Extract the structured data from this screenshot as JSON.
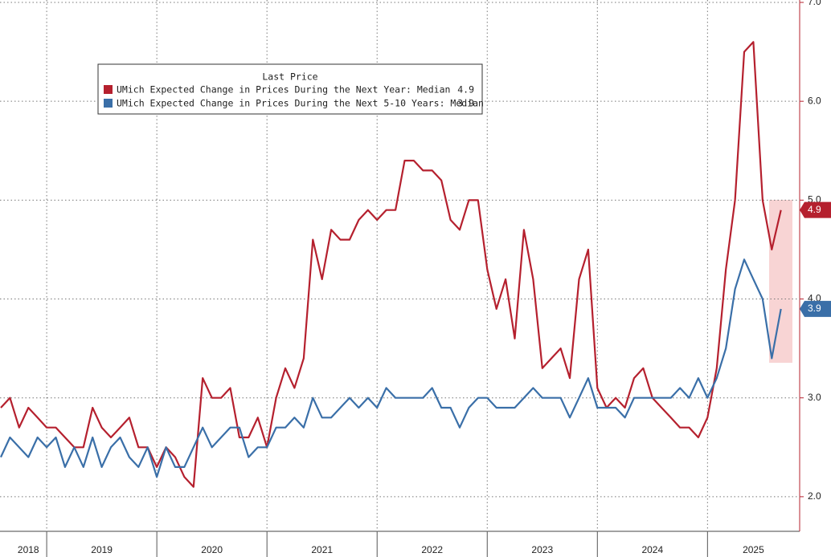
{
  "chart_data": {
    "type": "line",
    "categories": [
      null,
      null,
      null,
      "2018",
      null,
      null,
      null,
      null,
      null,
      null,
      null,
      "2019",
      null,
      null,
      null,
      null,
      null,
      null,
      null,
      null,
      null,
      null,
      null,
      "2020",
      null,
      null,
      null,
      null,
      null,
      null,
      null,
      null,
      null,
      null,
      null,
      "2021",
      null,
      null,
      null,
      null,
      null,
      null,
      null,
      null,
      null,
      null,
      null,
      "2022",
      null,
      null,
      null,
      null,
      null,
      null,
      null,
      null,
      null,
      null,
      null,
      "2023",
      null,
      null,
      null,
      null,
      null,
      null,
      null,
      null,
      null,
      null,
      null,
      "2024",
      null,
      null,
      null,
      null,
      null,
      null,
      null,
      null,
      null,
      null,
      "2025",
      null,
      null,
      null
    ],
    "legend_title": "Last Price",
    "series": [
      {
        "name": "UMich Expected Change in Prices During the Next Year: Median",
        "color": "#b5202e",
        "values": [
          2.9,
          3.0,
          2.7,
          2.9,
          2.8,
          2.7,
          2.7,
          2.6,
          2.5,
          2.5,
          2.9,
          2.7,
          2.6,
          2.7,
          2.8,
          2.5,
          2.5,
          2.3,
          2.5,
          2.4,
          2.2,
          2.1,
          3.2,
          3.0,
          3.0,
          3.1,
          2.6,
          2.6,
          2.8,
          2.5,
          3.0,
          3.3,
          3.1,
          3.4,
          4.6,
          4.2,
          4.7,
          4.6,
          4.6,
          4.8,
          4.9,
          4.8,
          4.9,
          4.9,
          5.4,
          5.4,
          5.3,
          5.3,
          5.2,
          4.8,
          4.7,
          5.0,
          5.0,
          4.3,
          3.9,
          4.2,
          3.6,
          4.7,
          4.2,
          3.3,
          3.4,
          3.5,
          3.2,
          4.2,
          4.5,
          3.1,
          2.9,
          3.0,
          2.9,
          3.2,
          3.3,
          3.0,
          2.9,
          2.8,
          2.7,
          2.7,
          2.6,
          2.8,
          3.3,
          4.3,
          5.0,
          6.5,
          6.6,
          5.0,
          4.5,
          4.9
        ]
      },
      {
        "name": "UMich Expected Change in Prices During the Next 5-10 Years: Median",
        "color": "#3a6fa8",
        "values": [
          2.4,
          2.6,
          2.5,
          2.4,
          2.6,
          2.5,
          2.6,
          2.3,
          2.5,
          2.3,
          2.6,
          2.3,
          2.5,
          2.6,
          2.4,
          2.3,
          2.5,
          2.2,
          2.5,
          2.3,
          2.3,
          2.5,
          2.7,
          2.5,
          2.6,
          2.7,
          2.7,
          2.4,
          2.5,
          2.5,
          2.7,
          2.7,
          2.8,
          2.7,
          3.0,
          2.8,
          2.8,
          2.9,
          3.0,
          2.9,
          3.0,
          2.9,
          3.1,
          3.0,
          3.0,
          3.0,
          3.0,
          3.1,
          2.9,
          2.9,
          2.7,
          2.9,
          3.0,
          3.0,
          2.9,
          2.9,
          2.9,
          3.0,
          3.1,
          3.0,
          3.0,
          3.0,
          2.8,
          3.0,
          3.2,
          2.9,
          2.9,
          2.9,
          2.8,
          3.0,
          3.0,
          3.0,
          3.0,
          3.0,
          3.1,
          3.0,
          3.2,
          3.0,
          3.2,
          3.5,
          4.1,
          4.4,
          4.2,
          4.0,
          3.4,
          3.9
        ]
      }
    ],
    "ylim": [
      1.65,
      7.0
    ],
    "yticks": [
      {
        "value": 2,
        "label": "2.0"
      },
      {
        "value": 3,
        "label": "3.0"
      },
      {
        "value": 4,
        "label": "4.0"
      },
      {
        "value": 5,
        "label": "5.0"
      },
      {
        "value": 6,
        "label": "6.0"
      },
      {
        "value": 7,
        "label": "7.0"
      }
    ],
    "grid": true,
    "legend": "upper left"
  }
}
